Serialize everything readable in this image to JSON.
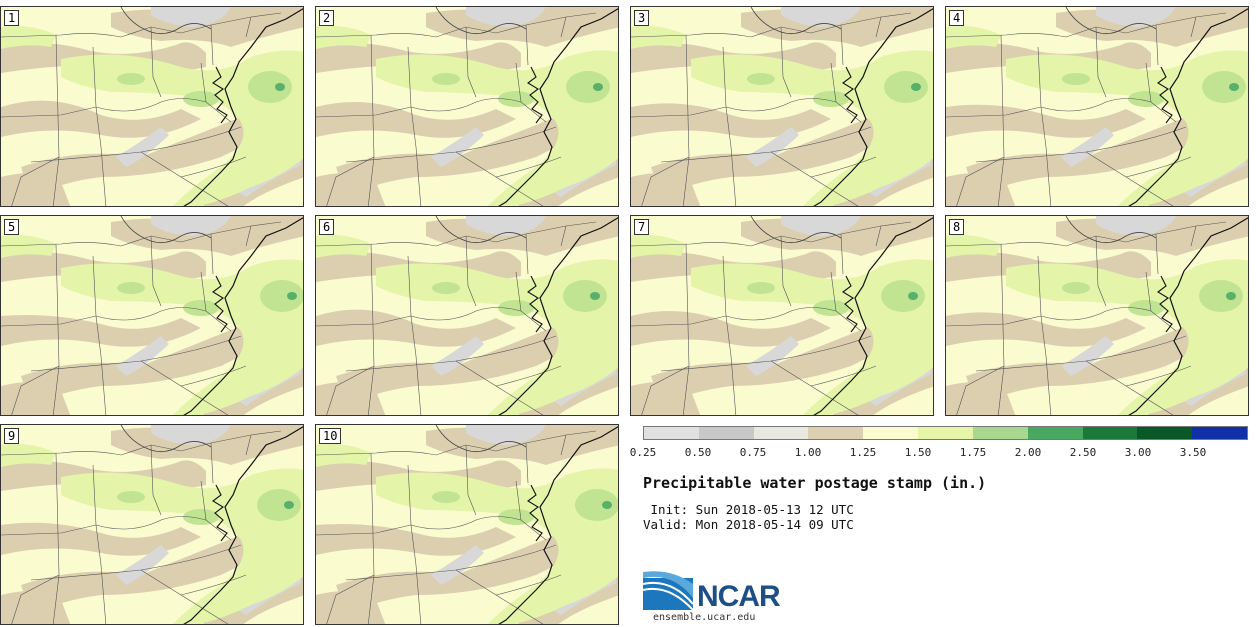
{
  "panels": [
    {
      "label": "1"
    },
    {
      "label": "2"
    },
    {
      "label": "3"
    },
    {
      "label": "4"
    },
    {
      "label": "5"
    },
    {
      "label": "6"
    },
    {
      "label": "7"
    },
    {
      "label": "8"
    },
    {
      "label": "9"
    },
    {
      "label": "10"
    }
  ],
  "colorbar": {
    "colors": [
      "#e0e0e0",
      "#c8c8c8",
      "#e8e8e0",
      "#dcd0b0",
      "#fbfbd0",
      "#e6f5a8",
      "#a8d890",
      "#48a860",
      "#1a7838",
      "#0a5828",
      "#1030a8"
    ],
    "ticks": [
      "0.25",
      "0.50",
      "0.75",
      "1.00",
      "1.25",
      "1.50",
      "1.75",
      "2.00",
      "2.50",
      "3.00",
      "3.50"
    ]
  },
  "title": "Precipitable water postage stamp (in.)",
  "init": " Init: Sun 2018-05-13 12 UTC",
  "valid": "Valid: Mon 2018-05-14 09 UTC",
  "logo": {
    "word": "NCAR",
    "url": "ensemble.ucar.edu"
  }
}
